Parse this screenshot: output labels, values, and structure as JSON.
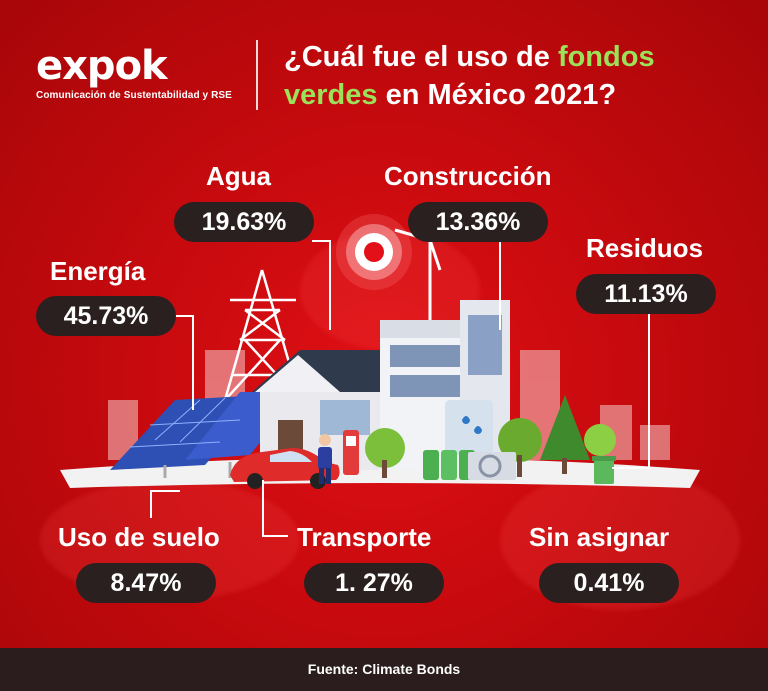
{
  "header": {
    "logo_text": "expok",
    "logo_tagline": "Comunicación de Sustentabilidad y RSE",
    "title_part1": "¿Cuál fue el uso de ",
    "title_highlight1": "fondos",
    "title_highlight2": "verdes",
    "title_part2": " en México 2021?"
  },
  "categories": {
    "agua": {
      "label": "Agua",
      "value": "19.63%"
    },
    "construccion": {
      "label": "Construcción",
      "value": "13.36%"
    },
    "energia": {
      "label": "Energía",
      "value": "45.73%"
    },
    "residuos": {
      "label": "Residuos",
      "value": "11.13%"
    },
    "uso_suelo": {
      "label": "Uso de suelo",
      "value": "8.47%"
    },
    "transporte": {
      "label": "Transporte",
      "value": "1. 27%"
    },
    "sin_asignar": {
      "label": "Sin asignar",
      "value": "0.41%"
    }
  },
  "footer": {
    "source": "Fuente: Climate Bonds"
  },
  "colors": {
    "background": "#c70a0e",
    "pill": "#2b2020",
    "highlight": "#9be15a",
    "footer": "#2b1d1d"
  },
  "illustration": {
    "icons": [
      "transmission-tower-icon",
      "solar-panel-icon",
      "house-icon",
      "office-building-icon",
      "electric-car-icon",
      "ev-charger-icon",
      "water-tank-icon",
      "battery-icon",
      "air-conditioner-icon",
      "recycle-bin-icon",
      "tree-icon",
      "location-pin-icon"
    ]
  }
}
